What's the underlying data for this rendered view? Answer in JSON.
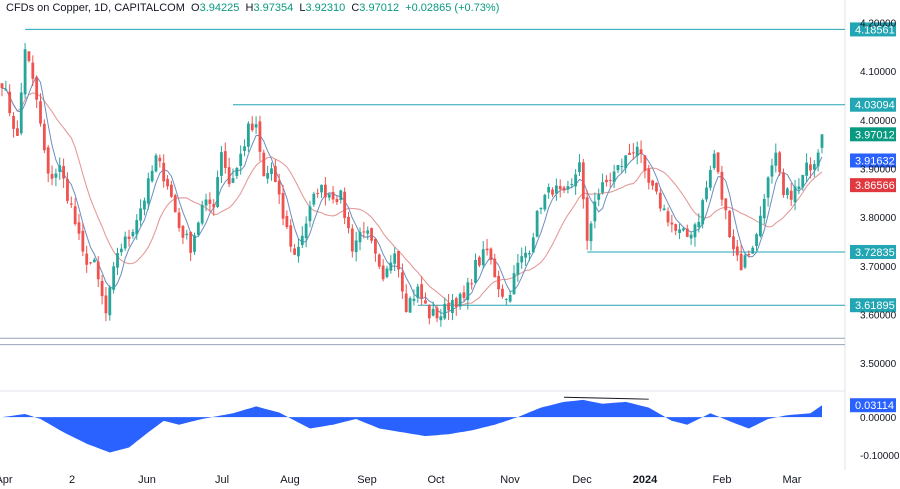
{
  "header": {
    "symbol_line": "CFDs on Copper, 1D, CAPITALCOM",
    "o_label": "O",
    "o_value": "3.94225",
    "h_label": "H",
    "h_value": "3.97354",
    "l_label": "L",
    "l_value": "3.92310",
    "c_label": "C",
    "c_value": "3.97012",
    "change": "+0.02865 (+0.73%)"
  },
  "colors": {
    "up": "#26a69a",
    "down": "#ef5350",
    "level_line": "#22a6b3",
    "sma_fast": "#6c8ebf",
    "sma_slow": "#e59a9a",
    "osc_fill": "#2962ff",
    "last_price_tag": "#089981",
    "sma_fast_tag": "#2962ff",
    "sma_slow_tag": "#e0383e",
    "axis_text": "#131722"
  },
  "chart_data": [
    {
      "type": "candlestick",
      "title": "",
      "xlabel": "",
      "ylabel": "",
      "ylim": [
        3.455,
        4.205
      ],
      "grid": false,
      "y_ticks": [
        "4.20000",
        "4.10000",
        "4.00000",
        "3.90000",
        "3.80000",
        "3.70000",
        "3.60000",
        "3.50000"
      ],
      "x_ticks": [
        "Apr",
        "2",
        "Jun",
        "Jul",
        "Aug",
        "Sep",
        "Oct",
        "Nov",
        "Dec",
        "2024",
        "Feb",
        "Mar"
      ],
      "horizontal_levels": [
        {
          "value": 4.18561,
          "label": "4.18561"
        },
        {
          "value": 4.03094,
          "label": "4.03094"
        },
        {
          "value": 3.72835,
          "label": "3.72835"
        },
        {
          "value": 3.61895,
          "label": "3.61895"
        },
        {
          "value": 3.551,
          "label": ""
        },
        {
          "value": 3.538,
          "label": ""
        }
      ],
      "price_tags": [
        {
          "value": 3.97012,
          "label": "3.97012",
          "kind": "last_price"
        },
        {
          "value": 3.91632,
          "label": "3.91632",
          "kind": "sma_fast"
        },
        {
          "value": 3.86566,
          "label": "3.86566",
          "kind": "sma_slow"
        }
      ],
      "close_anchors": [
        [
          0,
          4.08
        ],
        [
          4,
          3.96
        ],
        [
          6,
          4.15
        ],
        [
          9,
          4.04
        ],
        [
          12,
          3.88
        ],
        [
          15,
          3.9
        ],
        [
          18,
          3.82
        ],
        [
          21,
          3.72
        ],
        [
          24,
          3.7
        ],
        [
          27,
          3.6
        ],
        [
          30,
          3.73
        ],
        [
          33,
          3.76
        ],
        [
          37,
          3.84
        ],
        [
          40,
          3.92
        ],
        [
          43,
          3.87
        ],
        [
          46,
          3.78
        ],
        [
          49,
          3.74
        ],
        [
          52,
          3.82
        ],
        [
          55,
          3.83
        ],
        [
          57,
          3.94
        ],
        [
          59,
          3.87
        ],
        [
          61,
          3.9
        ],
        [
          64,
          3.98
        ],
        [
          66,
          3.98
        ],
        [
          68,
          3.88
        ],
        [
          70,
          3.9
        ],
        [
          73,
          3.8
        ],
        [
          76,
          3.72
        ],
        [
          79,
          3.79
        ],
        [
          82,
          3.86
        ],
        [
          85,
          3.85
        ],
        [
          88,
          3.84
        ],
        [
          91,
          3.74
        ],
        [
          94,
          3.78
        ],
        [
          96,
          3.74
        ],
        [
          99,
          3.66
        ],
        [
          102,
          3.74
        ],
        [
          105,
          3.62
        ],
        [
          108,
          3.65
        ],
        [
          111,
          3.6
        ],
        [
          114,
          3.6
        ],
        [
          117,
          3.63
        ],
        [
          120,
          3.63
        ],
        [
          123,
          3.7
        ],
        [
          126,
          3.73
        ],
        [
          129,
          3.66
        ],
        [
          131,
          3.63
        ],
        [
          134,
          3.7
        ],
        [
          137,
          3.74
        ],
        [
          140,
          3.83
        ],
        [
          143,
          3.86
        ],
        [
          146,
          3.84
        ],
        [
          148,
          3.86
        ],
        [
          150,
          3.92
        ],
        [
          152,
          3.74
        ],
        [
          154,
          3.84
        ],
        [
          157,
          3.87
        ],
        [
          160,
          3.9
        ],
        [
          163,
          3.93
        ],
        [
          165,
          3.95
        ],
        [
          167,
          3.88
        ],
        [
          170,
          3.84
        ],
        [
          173,
          3.8
        ],
        [
          175,
          3.77
        ],
        [
          178,
          3.76
        ],
        [
          181,
          3.8
        ],
        [
          183,
          3.86
        ],
        [
          185,
          3.93
        ],
        [
          187,
          3.84
        ],
        [
          190,
          3.74
        ],
        [
          192,
          3.7
        ],
        [
          194,
          3.73
        ],
        [
          196,
          3.76
        ],
        [
          198,
          3.85
        ],
        [
          201,
          3.92
        ],
        [
          203,
          3.84
        ],
        [
          205,
          3.85
        ],
        [
          207,
          3.86
        ],
        [
          209,
          3.9
        ],
        [
          211,
          3.92
        ],
        [
          213,
          3.97012
        ]
      ],
      "bar_count": 214
    },
    {
      "type": "area",
      "title": "",
      "ylim": [
        -0.118,
        0.058
      ],
      "y_ticks": [
        "0.00000",
        "-0.10000"
      ],
      "last_value_label": "0.03114",
      "annotation": "divergence line over the December peaks",
      "value_anchors": [
        [
          0,
          0.0
        ],
        [
          6,
          0.008
        ],
        [
          10,
          -0.005
        ],
        [
          16,
          -0.04
        ],
        [
          22,
          -0.07
        ],
        [
          28,
          -0.093
        ],
        [
          33,
          -0.08
        ],
        [
          38,
          -0.04
        ],
        [
          42,
          -0.01
        ],
        [
          46,
          -0.02
        ],
        [
          52,
          -0.005
        ],
        [
          60,
          0.01
        ],
        [
          66,
          0.028
        ],
        [
          72,
          0.012
        ],
        [
          80,
          -0.03
        ],
        [
          86,
          -0.02
        ],
        [
          92,
          -0.005
        ],
        [
          98,
          -0.03
        ],
        [
          104,
          -0.04
        ],
        [
          110,
          -0.05
        ],
        [
          116,
          -0.045
        ],
        [
          122,
          -0.035
        ],
        [
          128,
          -0.02
        ],
        [
          134,
          0.0
        ],
        [
          140,
          0.025
        ],
        [
          146,
          0.04
        ],
        [
          151,
          0.045
        ],
        [
          156,
          0.035
        ],
        [
          162,
          0.04
        ],
        [
          168,
          0.025
        ],
        [
          174,
          -0.01
        ],
        [
          178,
          -0.02
        ],
        [
          184,
          0.01
        ],
        [
          190,
          -0.015
        ],
        [
          194,
          -0.03
        ],
        [
          199,
          -0.005
        ],
        [
          204,
          0.005
        ],
        [
          210,
          0.01
        ],
        [
          213,
          0.03114
        ]
      ]
    }
  ]
}
